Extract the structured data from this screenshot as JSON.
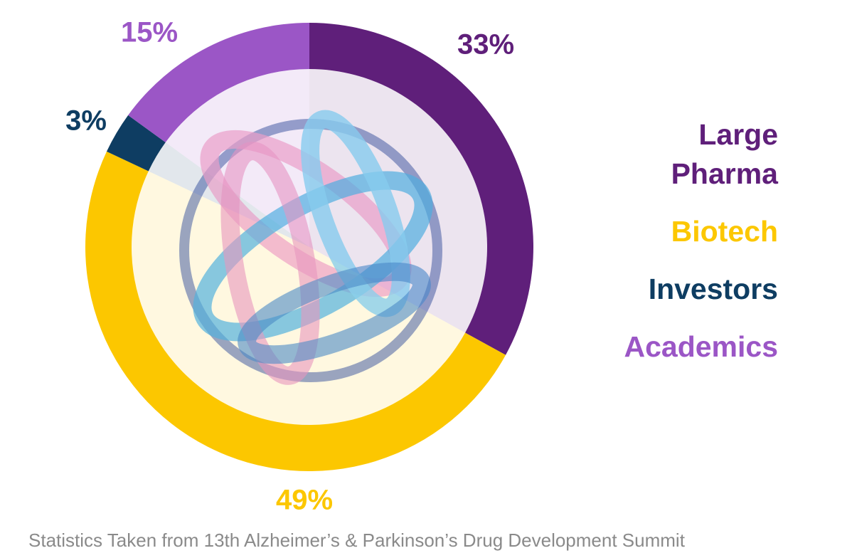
{
  "chart_data": {
    "type": "donut",
    "categories": [
      "Large Pharma",
      "Biotech",
      "Investors",
      "Academics"
    ],
    "values": [
      33,
      49,
      3,
      15
    ],
    "value_labels": [
      "33%",
      "49%",
      "3%",
      "15%"
    ],
    "colors": [
      "#5f1f7a",
      "#fcc700",
      "#0e3d62",
      "#9b56c6"
    ],
    "source": "Statistics Taken from 13th Alzheimer’s & Parkinson’s Drug Development Summit"
  }
}
